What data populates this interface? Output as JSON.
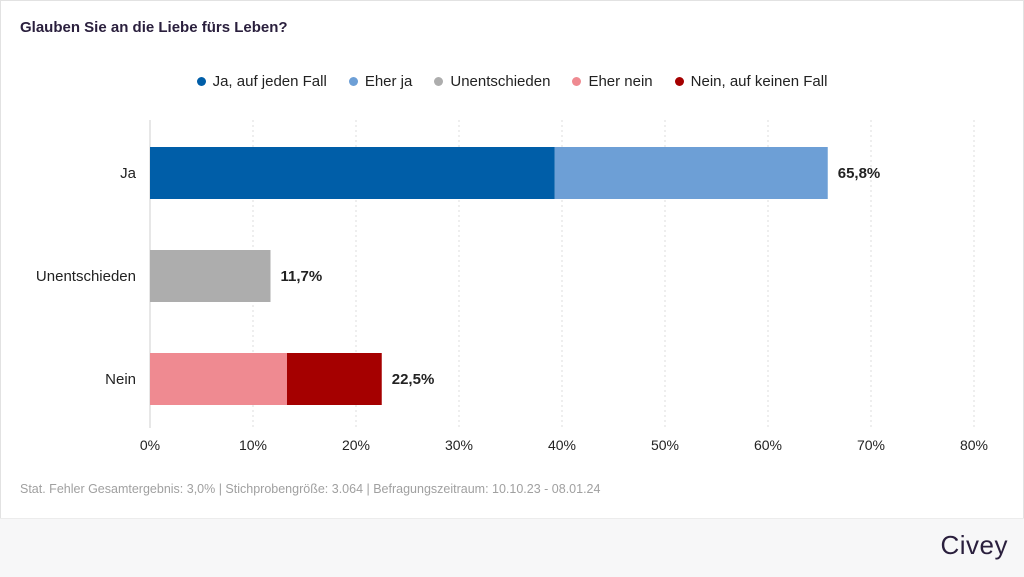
{
  "chart_data": {
    "type": "bar",
    "orientation": "horizontal",
    "stacked": true,
    "title": "Glauben Sie an die Liebe fürs Leben?",
    "categories": [
      "Ja",
      "Unentschieden",
      "Nein"
    ],
    "series": [
      {
        "name": "Ja, auf jeden Fall",
        "color": "#005ea8",
        "values": [
          39.3,
          0,
          0
        ]
      },
      {
        "name": "Eher ja",
        "color": "#6d9fd6",
        "values": [
          26.5,
          0,
          0
        ]
      },
      {
        "name": "Unentschieden",
        "color": "#adadad",
        "values": [
          0,
          11.7,
          0
        ]
      },
      {
        "name": "Eher nein",
        "color": "#ef8a91",
        "values": [
          0,
          0,
          13.3
        ]
      },
      {
        "name": "Nein, auf keinen Fall",
        "color": "#a50000",
        "values": [
          0,
          0,
          9.2
        ]
      }
    ],
    "totals": [
      65.8,
      11.7,
      22.5
    ],
    "total_labels": [
      "65,8%",
      "11,7%",
      "22,5%"
    ],
    "xlim": [
      0,
      80
    ],
    "xticks": [
      0,
      10,
      20,
      30,
      40,
      50,
      60,
      70,
      80
    ],
    "xtick_labels": [
      "0%",
      "10%",
      "20%",
      "30%",
      "40%",
      "50%",
      "60%",
      "70%",
      "80%"
    ],
    "grid": true,
    "legend_position": "top"
  },
  "footnote": "Stat. Fehler Gesamtergebnis: 3,0% | Stichprobengröße: 3.064 | Befragungszeitraum: 10.10.23 - 08.01.24",
  "brand": "Civey"
}
